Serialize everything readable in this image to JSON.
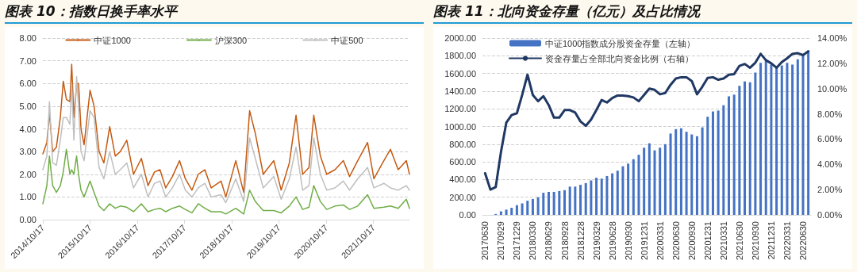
{
  "chart_data": [
    {
      "type": "line",
      "title": "图表 10：指数日换手率水平",
      "x": [
        "2014-10-17",
        "2014-11-17",
        "2014-12-07",
        "2015-01-01",
        "2015-01-30",
        "2015-03-01",
        "2015-03-24",
        "2015-04-17",
        "2015-05-14",
        "2015-05-28",
        "2015-06-14",
        "2015-07-05",
        "2015-07-20",
        "2015-08-08",
        "2015-09-01",
        "2015-10-17",
        "2015-11-17",
        "2015-12-26",
        "2016-02-01",
        "2016-03-17",
        "2016-04-29",
        "2016-06-07",
        "2016-07-27",
        "2016-09-17",
        "2016-11-17",
        "2017-01-07",
        "2017-02-26",
        "2017-04-10",
        "2017-05-24",
        "2017-07-15",
        "2017-09-08",
        "2017-10-23",
        "2017-12-13",
        "2018-01-31",
        "2018-03-23",
        "2018-05-11",
        "2018-07-26",
        "2018-09-01",
        "2018-11-17",
        "2019-01-17",
        "2019-03-04",
        "2019-04-17",
        "2019-06-17",
        "2019-09-07",
        "2019-11-03",
        "2020-01-05",
        "2020-02-26",
        "2020-04-17",
        "2020-06-05",
        "2020-07-12",
        "2020-09-01",
        "2020-10-20",
        "2020-12-23",
        "2021-02-26",
        "2021-04-15",
        "2021-06-17",
        "2021-09-01",
        "2021-10-20",
        "2022-01-05",
        "2022-02-25",
        "2022-04-26",
        "2022-06-28",
        "2022-07-22"
      ],
      "series": [
        {
          "name": "中证1000",
          "color": "#c55a11",
          "values": [
            2.9,
            3.4,
            4.7,
            3.0,
            3.2,
            4.5,
            6.1,
            5.3,
            5.2,
            6.85,
            4.5,
            6.0,
            6.0,
            4.0,
            3.3,
            5.7,
            5.0,
            3.0,
            2.5,
            4.1,
            2.8,
            3.0,
            3.5,
            2.0,
            2.7,
            1.5,
            2.1,
            2.2,
            1.4,
            1.9,
            2.6,
            1.8,
            1.3,
            2.0,
            2.2,
            1.4,
            1.7,
            1.0,
            2.6,
            1.2,
            4.8,
            3.8,
            2.0,
            2.6,
            1.3,
            2.5,
            4.6,
            2.0,
            2.3,
            4.6,
            2.8,
            2.0,
            2.2,
            2.6,
            1.9,
            2.6,
            3.4,
            1.8,
            2.6,
            3.1,
            2.2,
            2.6,
            2.0
          ]
        },
        {
          "name": "沪深300",
          "color": "#70ad47",
          "values": [
            0.7,
            1.5,
            2.8,
            1.5,
            1.2,
            1.5,
            2.1,
            3.1,
            2.0,
            2.2,
            2.0,
            2.8,
            2.0,
            1.3,
            1.0,
            1.7,
            1.2,
            0.6,
            0.4,
            0.7,
            0.5,
            0.6,
            0.55,
            0.35,
            0.7,
            0.35,
            0.45,
            0.5,
            0.35,
            0.5,
            0.6,
            0.45,
            0.3,
            0.7,
            0.5,
            0.35,
            0.35,
            0.25,
            0.5,
            0.25,
            1.3,
            0.8,
            0.4,
            0.4,
            0.3,
            0.6,
            1.0,
            0.45,
            0.55,
            1.5,
            0.8,
            0.45,
            0.6,
            0.65,
            0.45,
            0.6,
            1.1,
            0.5,
            0.55,
            0.6,
            0.5,
            0.9,
            0.5
          ]
        },
        {
          "name": "中证500",
          "color": "#bfbfbf",
          "values": [
            2.2,
            2.8,
            5.2,
            2.5,
            2.4,
            3.5,
            4.5,
            4.5,
            4.2,
            6.0,
            3.5,
            6.3,
            5.0,
            3.0,
            2.6,
            4.8,
            4.5,
            2.3,
            1.8,
            3.0,
            2.0,
            2.2,
            2.5,
            1.4,
            2.0,
            1.0,
            1.6,
            1.7,
            1.0,
            1.4,
            2.0,
            1.3,
            1.0,
            1.4,
            1.6,
            1.0,
            1.1,
            0.75,
            1.8,
            0.8,
            3.6,
            2.7,
            1.4,
            1.9,
            0.9,
            1.8,
            3.2,
            1.3,
            1.5,
            3.6,
            2.0,
            1.3,
            1.4,
            1.7,
            1.3,
            1.8,
            2.3,
            1.4,
            1.6,
            1.4,
            1.3,
            1.5,
            1.3
          ]
        }
      ],
      "xlim": [
        "2014-10-17",
        "2022-07-22"
      ],
      "xticks": [
        {
          "value": "2014-10-17",
          "label": "2014/10/17"
        },
        {
          "value": "2015-10-17",
          "label": "2015/10/17"
        },
        {
          "value": "2016-10-17",
          "label": "2016/10/17"
        },
        {
          "value": "2017-10-17",
          "label": "2017/10/17"
        },
        {
          "value": "2018-10-17",
          "label": "2018/10/17"
        },
        {
          "value": "2019-10-17",
          "label": "2019/10/17"
        },
        {
          "value": "2020-10-17",
          "label": "2020/10/17"
        },
        {
          "value": "2021-10-17",
          "label": "2021/10/17"
        }
      ],
      "ylim": [
        0,
        8
      ],
      "yticks": [
        {
          "value": 0,
          "label": "0.00"
        },
        {
          "value": 1,
          "label": "1.00"
        },
        {
          "value": 2,
          "label": "2.00"
        },
        {
          "value": 3,
          "label": "3.00"
        },
        {
          "value": 4,
          "label": "4.00"
        },
        {
          "value": 5,
          "label": "5.00"
        },
        {
          "value": 6,
          "label": "6.00"
        },
        {
          "value": 7,
          "label": "7.00"
        },
        {
          "value": 8,
          "label": "8.00"
        }
      ],
      "grid": "y",
      "legend": "top",
      "marker": "none"
    },
    {
      "type": "bar",
      "title": "图表 11：北向资金存量（亿元）及占比情况",
      "categories": [
        "20170630",
        null,
        null,
        "20170929",
        null,
        null,
        "20171229",
        null,
        null,
        "20180330",
        null,
        null,
        "20180629",
        null,
        null,
        "20180928",
        null,
        null,
        "20181228",
        null,
        null,
        "20190329",
        null,
        null,
        "20190628",
        null,
        null,
        "20190930",
        null,
        null,
        "20191231",
        null,
        null,
        "20200331",
        null,
        null,
        "20200630",
        null,
        null,
        "20200930",
        null,
        null,
        "20201231",
        null,
        null,
        "20210331",
        null,
        null,
        "20210630",
        null,
        null,
        "20210930",
        null,
        null,
        "20211231",
        null,
        null,
        "20220331",
        null,
        null,
        "20220630",
        null
      ],
      "series": [
        {
          "name": "中证1000指数成分股资金存量（左轴）",
          "color": "#4472c4",
          "values": [
            0,
            0,
            10,
            40,
            60,
            80,
            110,
            130,
            160,
            180,
            200,
            250,
            260,
            260,
            270,
            280,
            320,
            320,
            340,
            360,
            390,
            420,
            410,
            440,
            470,
            500,
            550,
            580,
            630,
            680,
            760,
            810,
            730,
            760,
            800,
            920,
            970,
            980,
            940,
            910,
            890,
            990,
            1110,
            1170,
            1180,
            1240,
            1340,
            1360,
            1460,
            1510,
            1500,
            1610,
            1720,
            1750,
            1700,
            1670,
            1690,
            1720,
            1700,
            1760,
            1800,
            1860
          ]
        },
        {
          "name": "资金存量占全部北向资金比例（右轴）",
          "type": "line",
          "axis": "y2",
          "color": "#203864",
          "values": [
            3.3,
            2.0,
            2.2,
            5.0,
            7.3,
            7.9,
            8.05,
            9.5,
            11.1,
            9.5,
            9.0,
            9.4,
            8.7,
            7.7,
            7.7,
            8.3,
            8.3,
            8.1,
            7.4,
            7.05,
            7.55,
            8.3,
            9.1,
            8.9,
            9.25,
            9.45,
            9.45,
            9.4,
            9.3,
            9.0,
            9.5,
            10.0,
            9.9,
            9.55,
            9.65,
            10.3,
            10.8,
            10.9,
            10.9,
            10.6,
            9.55,
            10.15,
            10.85,
            10.9,
            10.7,
            10.8,
            11.1,
            11.15,
            11.8,
            11.95,
            11.65,
            12.05,
            12.75,
            12.25,
            12.0,
            11.65,
            12.1,
            12.4,
            12.75,
            12.8,
            12.65,
            12.95
          ]
        }
      ],
      "ylim": [
        0,
        2000
      ],
      "yticks": [
        {
          "value": 0,
          "label": "0.00"
        },
        {
          "value": 200,
          "label": "200.00"
        },
        {
          "value": 400,
          "label": "400.00"
        },
        {
          "value": 600,
          "label": "600.00"
        },
        {
          "value": 800,
          "label": "800.00"
        },
        {
          "value": 1000,
          "label": "1000.00"
        },
        {
          "value": 1200,
          "label": "1200.00"
        },
        {
          "value": 1400,
          "label": "1400.00"
        },
        {
          "value": 1600,
          "label": "1600.00"
        },
        {
          "value": 1800,
          "label": "1800.00"
        },
        {
          "value": 2000,
          "label": "2000.00"
        }
      ],
      "y2lim": [
        0,
        14
      ],
      "y2ticks": [
        {
          "value": 0,
          "label": "0.00%"
        },
        {
          "value": 2,
          "label": "2.00%"
        },
        {
          "value": 4,
          "label": "4.00%"
        },
        {
          "value": 6,
          "label": "6.00%"
        },
        {
          "value": 8,
          "label": "8.00%"
        },
        {
          "value": 10,
          "label": "10.00%"
        },
        {
          "value": 12,
          "label": "12.00%"
        },
        {
          "value": 14,
          "label": "14.00%"
        }
      ],
      "grid": "y",
      "legend": "top",
      "marker": "none"
    }
  ]
}
